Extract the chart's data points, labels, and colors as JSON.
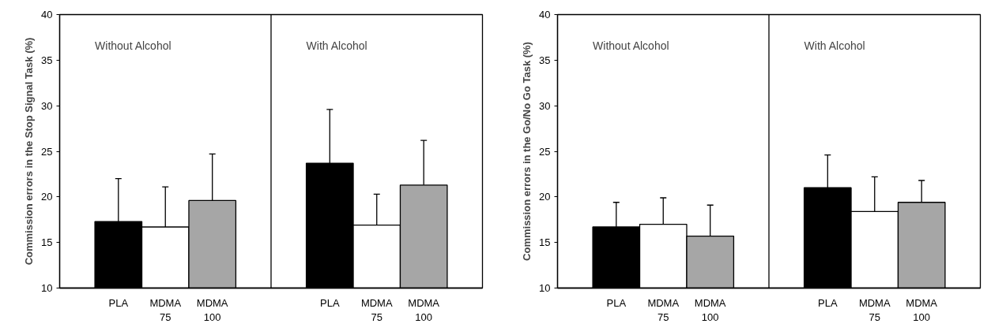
{
  "chart_data": [
    {
      "type": "bar",
      "ylabel": "Commission errors in the Stop Signal Task (%)",
      "categories": [
        "PLA",
        "MDMA 75",
        "MDMA 100",
        "PLA",
        "MDMA 75",
        "MDMA 100"
      ],
      "values": [
        17.3,
        16.7,
        19.6,
        23.7,
        16.9,
        21.3
      ],
      "errors": [
        [
          17.3,
          22.0
        ],
        [
          16.7,
          21.1
        ],
        [
          19.6,
          24.7
        ],
        [
          23.7,
          29.6
        ],
        [
          16.9,
          20.3
        ],
        [
          21.3,
          26.2
        ]
      ],
      "colors": [
        "#000000",
        "#ffffff",
        "#a6a6a6",
        "#000000",
        "#ffffff",
        "#a6a6a6"
      ],
      "ylim": [
        10,
        40
      ],
      "yticks": [
        10,
        15,
        20,
        25,
        30,
        35,
        40
      ],
      "grid": false,
      "annotations": [
        "Without Alcohol",
        "With Alcohol"
      ]
    },
    {
      "type": "bar",
      "ylabel": "Commission errors in the Go/No Go Task (%)",
      "categories": [
        "PLA",
        "MDMA 75",
        "MDMA 100",
        "PLA",
        "MDMA 75",
        "MDMA 100"
      ],
      "values": [
        16.7,
        17.0,
        15.7,
        21.0,
        18.4,
        19.4
      ],
      "errors": [
        [
          16.7,
          19.4
        ],
        [
          17.0,
          19.9
        ],
        [
          15.7,
          19.1
        ],
        [
          21.0,
          24.6
        ],
        [
          18.4,
          22.2
        ],
        [
          19.4,
          21.8
        ]
      ],
      "colors": [
        "#000000",
        "#ffffff",
        "#a6a6a6",
        "#000000",
        "#ffffff",
        "#a6a6a6"
      ],
      "ylim": [
        10,
        40
      ],
      "yticks": [
        10,
        15,
        20,
        25,
        30,
        35,
        40
      ],
      "grid": false,
      "annotations": [
        "Without Alcohol",
        "With Alcohol"
      ]
    }
  ]
}
